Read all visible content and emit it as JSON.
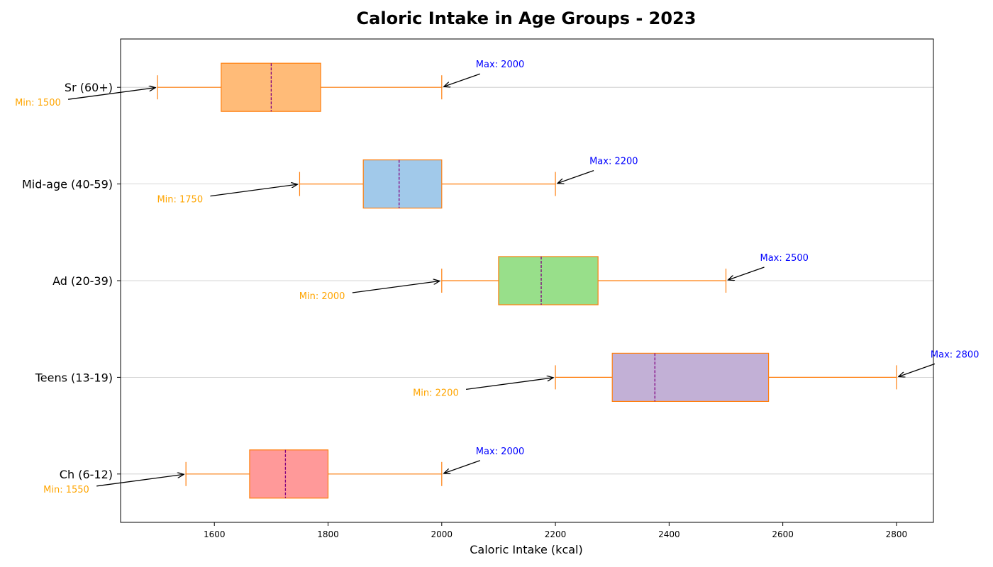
{
  "chart_data": {
    "type": "box",
    "orientation": "horizontal",
    "title": "Caloric Intake in Age Groups - 2023",
    "xlabel": "Caloric Intake (kcal)",
    "ylabel": "",
    "xlim": [
      1435,
      2865
    ],
    "x_ticks": [
      1600,
      1800,
      2000,
      2200,
      2400,
      2600,
      2800
    ],
    "grid": "horizontal",
    "groups": [
      {
        "label": "Ch (6-12)",
        "min": 1550,
        "q1": 1662,
        "median": 1725,
        "q3": 1800,
        "max": 2000,
        "color": "#ff9999",
        "min_label": "Min: 1550",
        "max_label": "Max: 2000"
      },
      {
        "label": "Teens (13-19)",
        "min": 2200,
        "q1": 2300,
        "median": 2375,
        "q3": 2575,
        "max": 2800,
        "color": "#c2b0d6",
        "min_label": "Min: 2200",
        "max_label": "Max: 2800"
      },
      {
        "label": "Ad (20-39)",
        "min": 2000,
        "q1": 2100,
        "median": 2175,
        "q3": 2275,
        "max": 2500,
        "color": "#98df8a",
        "min_label": "Min: 2000",
        "max_label": "Max: 2500"
      },
      {
        "label": "Mid-age (40-59)",
        "min": 1750,
        "q1": 1862,
        "median": 1925,
        "q3": 2000,
        "max": 2200,
        "color": "#a1c9ea",
        "min_label": "Min: 1750",
        "max_label": "Max: 2200"
      },
      {
        "label": "Sr (60+)",
        "min": 1500,
        "q1": 1612,
        "median": 1700,
        "q3": 1787,
        "max": 2000,
        "color": "#ffbb78",
        "min_label": "Min: 1500",
        "max_label": "Max: 2000"
      }
    ],
    "colors": {
      "box_edge": "#ff7f0e",
      "whisker": "#ff7f0e",
      "median": "#800080",
      "min_annotation": "#ffa500",
      "max_annotation": "#0000ff",
      "arrow": "#000000",
      "grid": "#c8c8c8"
    }
  }
}
